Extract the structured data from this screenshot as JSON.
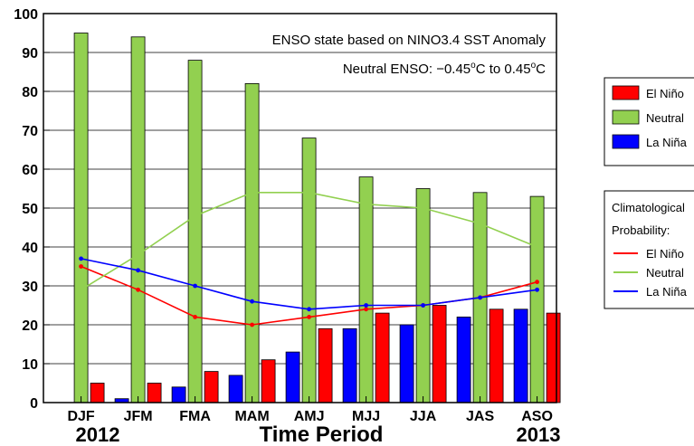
{
  "chart_data": {
    "type": "bar",
    "categories": [
      "DJF",
      "JFM",
      "FMA",
      "MAM",
      "AMJ",
      "MJJ",
      "JJA",
      "JAS",
      "ASO"
    ],
    "ylim": [
      0,
      100
    ],
    "yticks": [
      0,
      10,
      20,
      30,
      40,
      50,
      60,
      70,
      80,
      90,
      100
    ],
    "grid": true,
    "xlabel": "Time Period",
    "start_year": "2012",
    "end_year": "2013",
    "annotations": {
      "line1": "ENSO state based on NINO3.4 SST Anomaly",
      "line2_prefix": "Neutral ENSO: −0.45",
      "line2_unit1": "C to 0.45",
      "line2_unit2": "C",
      "degree": "o"
    },
    "bar_series": [
      {
        "name": "La Niña",
        "color": "#0000ff",
        "values": [
          0,
          1,
          4,
          7,
          13,
          19,
          20,
          22,
          24
        ]
      },
      {
        "name": "Neutral",
        "color": "#92d050",
        "values": [
          95,
          94,
          88,
          82,
          68,
          58,
          55,
          54,
          53
        ]
      },
      {
        "name": "El Niño",
        "color": "#ff0000",
        "values": [
          5,
          5,
          8,
          11,
          19,
          23,
          25,
          24,
          23
        ]
      }
    ],
    "climatology_title_line1": "Climatological",
    "climatology_title_line2": "Probability:",
    "line_series": [
      {
        "name": "El Niño",
        "color": "#ff0000",
        "values": [
          35,
          29,
          22,
          20,
          22,
          24,
          25,
          27,
          31
        ],
        "start_index": 0,
        "markers": true
      },
      {
        "name": "Neutral",
        "color": "#92d050",
        "values": [
          29,
          38,
          48,
          54,
          54,
          51,
          50,
          46,
          40
        ],
        "start_index": 0,
        "markers": false
      },
      {
        "name": "La Niña",
        "color": "#0000ff",
        "values": [
          37,
          34,
          30,
          26,
          24,
          25,
          25,
          27,
          29
        ],
        "start_index": 0,
        "markers": true
      }
    ],
    "legend_position": "right"
  }
}
